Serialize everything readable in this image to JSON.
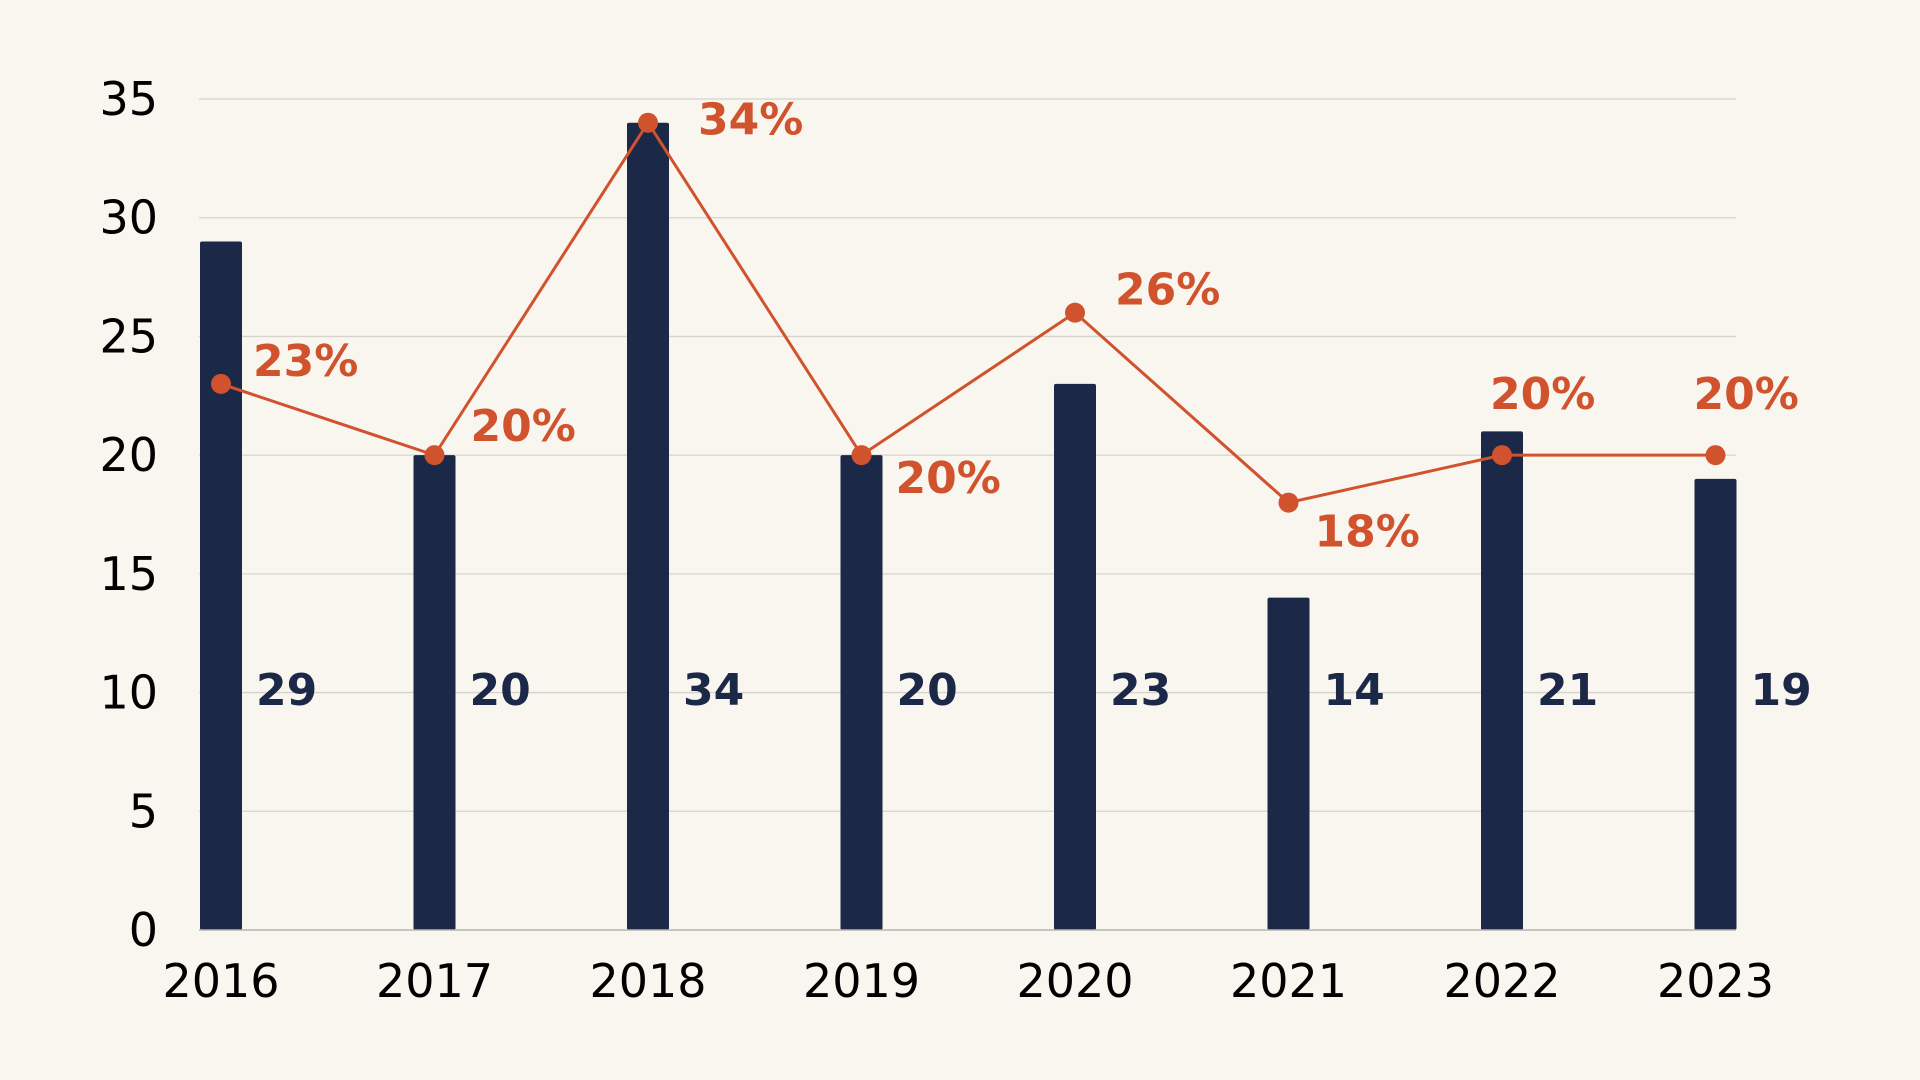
{
  "chart_data": {
    "type": "bar",
    "categories": [
      "2016",
      "2017",
      "2018",
      "2019",
      "2020",
      "2021",
      "2022",
      "2023"
    ],
    "series": [
      {
        "type": "bar",
        "values": [
          29,
          20,
          34,
          20,
          23,
          14,
          21,
          19
        ],
        "labels": [
          "29",
          "20",
          "34",
          "20",
          "23",
          "14",
          "21",
          "19"
        ],
        "color": "#1c2848"
      },
      {
        "type": "line",
        "values": [
          23,
          20,
          34,
          20,
          26,
          18,
          20,
          20
        ],
        "labels": [
          "23%",
          "20%",
          "34%",
          "20%",
          "26%",
          "18%",
          "20%",
          "20%"
        ],
        "color": "#d0532e"
      }
    ],
    "ylim": [
      0,
      35
    ],
    "yticks": [
      "0",
      "5",
      "10",
      "15",
      "20",
      "25",
      "30",
      "35"
    ],
    "grid": true,
    "background": "#f9f5ef",
    "gridline_color": "#d6d3cd"
  }
}
